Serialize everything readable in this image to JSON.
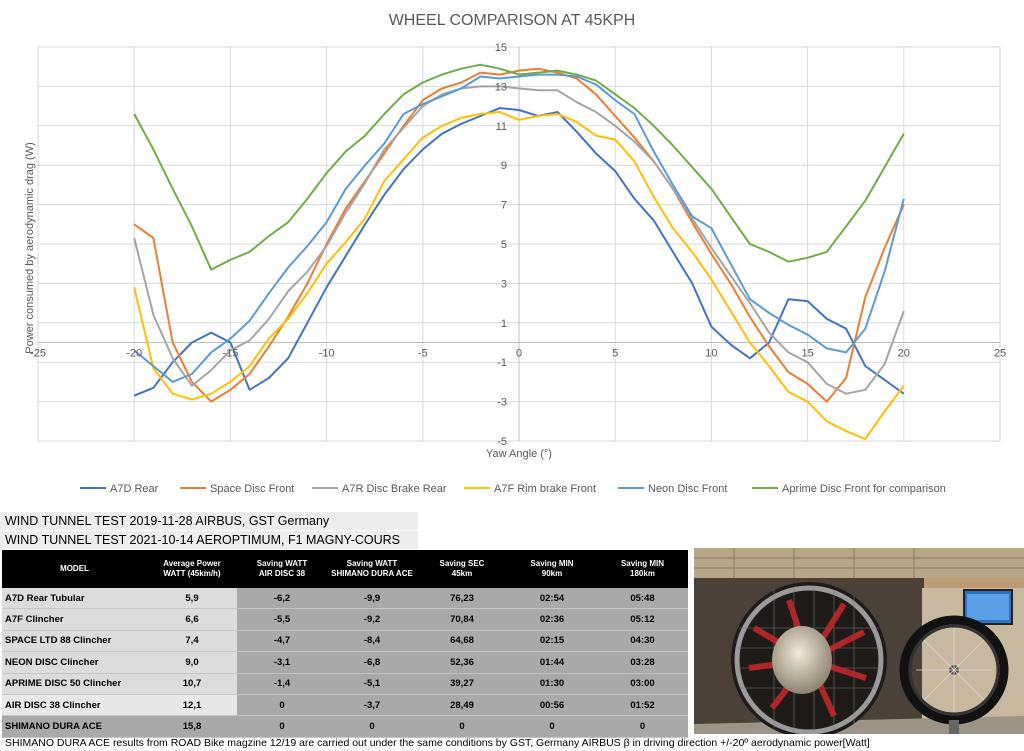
{
  "chart_data": {
    "type": "line",
    "title": "WHEEL COMPARISON AT 45KPH",
    "xlabel": "Yaw Angle (°)",
    "ylabel": "Power consumed by aerodynamic drag (W)",
    "xlim": [
      -25,
      25
    ],
    "ylim": [
      -5,
      15
    ],
    "xticks": [
      "-25",
      "-20",
      "-15",
      "-10",
      "-5",
      "0",
      "5",
      "10",
      "15",
      "20",
      "25"
    ],
    "yticks": [
      "15",
      "13",
      "11",
      "9",
      "7",
      "5",
      "3",
      "1",
      "-1",
      "-3",
      "-5"
    ],
    "grid": true,
    "legend": "bottom",
    "series": [
      {
        "name": "A7D Rear",
        "color": "#4472c4",
        "x": [
          -20,
          -19,
          -18,
          -17,
          -16,
          -15,
          -14,
          -13,
          -12,
          -11,
          -10,
          -9,
          -8,
          -7,
          -6,
          -5,
          -4,
          -3,
          -2,
          -1,
          0,
          1,
          2,
          3,
          4,
          5,
          6,
          7,
          8,
          9,
          10,
          11,
          12,
          13,
          14,
          15,
          16,
          17,
          18,
          19,
          20
        ],
        "y": [
          -2.7,
          -2.3,
          -1.0,
          0.0,
          0.5,
          0.0,
          -2.4,
          -1.8,
          -0.8,
          1.0,
          2.8,
          4.4,
          6.0,
          7.5,
          8.8,
          9.8,
          10.6,
          11.1,
          11.5,
          11.9,
          11.8,
          11.5,
          11.7,
          10.7,
          9.6,
          8.7,
          7.3,
          6.2,
          4.6,
          3.0,
          0.8,
          -0.1,
          -0.8,
          0.0,
          2.2,
          2.1,
          1.2,
          0.7,
          -1.2,
          -1.9,
          -2.6
        ]
      },
      {
        "name": "Space Disc Front",
        "color": "#ed7d31",
        "x": [
          -20,
          -19,
          -18,
          -17,
          -16,
          -15,
          -14,
          -13,
          -12,
          -11,
          -10,
          -9,
          -8,
          -7,
          -6,
          -5,
          -4,
          -3,
          -2,
          -1,
          0,
          1,
          2,
          3,
          4,
          5,
          6,
          7,
          8,
          9,
          10,
          11,
          12,
          13,
          14,
          15,
          16,
          17,
          18,
          19,
          20
        ],
        "y": [
          6.0,
          5.3,
          0.0,
          -2.0,
          -3.0,
          -2.4,
          -1.6,
          -0.2,
          1.3,
          3.0,
          5.0,
          6.8,
          8.2,
          9.6,
          11.0,
          12.3,
          12.9,
          13.2,
          13.7,
          13.6,
          13.8,
          13.9,
          13.7,
          13.4,
          12.6,
          11.5,
          10.4,
          9.2,
          7.8,
          6.1,
          4.5,
          3.0,
          1.3,
          -0.2,
          -1.5,
          -2.1,
          -3.0,
          -1.8,
          2.3,
          4.8,
          7.0
        ]
      },
      {
        "name": "A7R Disc Brake Rear",
        "color": "#a5a5a5",
        "x": [
          -20,
          -19,
          -18,
          -17,
          -16,
          -15,
          -14,
          -13,
          -12,
          -11,
          -10,
          -9,
          -8,
          -7,
          -6,
          -5,
          -4,
          -3,
          -2,
          -1,
          0,
          1,
          2,
          3,
          4,
          5,
          6,
          7,
          8,
          9,
          10,
          11,
          12,
          13,
          14,
          15,
          16,
          17,
          18,
          19,
          20
        ],
        "y": [
          5.3,
          1.4,
          -0.8,
          -2.2,
          -1.4,
          -0.4,
          0.1,
          1.2,
          2.6,
          3.6,
          4.9,
          6.6,
          8.1,
          9.8,
          10.9,
          12.0,
          12.6,
          12.9,
          13.0,
          13.0,
          12.9,
          12.8,
          12.8,
          12.2,
          11.7,
          11.0,
          10.2,
          9.2,
          7.8,
          6.3,
          4.8,
          3.4,
          2.0,
          0.5,
          -0.5,
          -1.0,
          -2.1,
          -2.6,
          -2.4,
          -1.1,
          1.6
        ]
      },
      {
        "name": "A7F Rim brake Front",
        "color": "#ffc000",
        "x": [
          -20,
          -19,
          -18,
          -17,
          -16,
          -15,
          -14,
          -13,
          -12,
          -11,
          -10,
          -9,
          -8,
          -7,
          -6,
          -5,
          -4,
          -3,
          -2,
          -1,
          0,
          1,
          2,
          3,
          4,
          5,
          6,
          7,
          8,
          9,
          10,
          11,
          12,
          13,
          14,
          15,
          16,
          17,
          18,
          19,
          20
        ],
        "y": [
          2.8,
          -1.3,
          -2.6,
          -2.9,
          -2.6,
          -2.0,
          -1.2,
          0.2,
          1.2,
          2.5,
          4.0,
          5.1,
          6.3,
          8.2,
          9.3,
          10.4,
          11.0,
          11.4,
          11.6,
          11.7,
          11.3,
          11.5,
          11.6,
          11.2,
          10.5,
          10.3,
          9.2,
          7.4,
          5.8,
          4.6,
          3.2,
          1.6,
          0.0,
          -1.2,
          -2.5,
          -3.0,
          -4.0,
          -4.5,
          -4.9,
          -3.5,
          -2.2
        ]
      },
      {
        "name": "Neon Disc Front",
        "color": "#5b9bd5",
        "x": [
          -20,
          -19,
          -18,
          -17,
          -16,
          -15,
          -14,
          -13,
          -12,
          -11,
          -10,
          -9,
          -8,
          -7,
          -6,
          -5,
          -4,
          -3,
          -2,
          -1,
          0,
          1,
          2,
          3,
          4,
          5,
          6,
          7,
          8,
          9,
          10,
          11,
          12,
          13,
          14,
          15,
          16,
          17,
          18,
          19,
          20
        ],
        "y": [
          -0.4,
          -1.2,
          -2.0,
          -1.6,
          -0.5,
          0.2,
          1.1,
          2.5,
          3.8,
          4.9,
          6.1,
          7.8,
          9.0,
          10.1,
          11.6,
          12.1,
          12.5,
          12.9,
          13.5,
          13.4,
          13.5,
          13.6,
          13.6,
          13.5,
          13.1,
          12.3,
          11.6,
          9.7,
          8.0,
          6.4,
          5.8,
          4.0,
          2.2,
          1.5,
          0.9,
          0.4,
          -0.3,
          -0.5,
          0.7,
          3.6,
          7.3
        ]
      },
      {
        "name": "Aprime Disc Front for comparison",
        "color": "#70ad47",
        "x": [
          -20,
          -19,
          -18,
          -17,
          -16,
          -15,
          -14,
          -13,
          -12,
          -11,
          -10,
          -9,
          -8,
          -7,
          -6,
          -5,
          -4,
          -3,
          -2,
          -1,
          0,
          1,
          2,
          3,
          4,
          5,
          6,
          7,
          8,
          9,
          10,
          11,
          12,
          13,
          14,
          15,
          16,
          17,
          18,
          19,
          20
        ],
        "y": [
          11.6,
          9.8,
          7.8,
          5.9,
          3.7,
          4.2,
          4.6,
          5.4,
          6.1,
          7.3,
          8.6,
          9.7,
          10.5,
          11.6,
          12.6,
          13.2,
          13.6,
          13.9,
          14.1,
          13.9,
          13.6,
          13.7,
          13.8,
          13.6,
          13.3,
          12.6,
          11.9,
          11.0,
          10.0,
          8.9,
          7.8,
          6.4,
          5.0,
          4.6,
          4.1,
          4.3,
          4.6,
          5.9,
          7.2,
          8.9,
          10.6
        ]
      }
    ]
  },
  "bands": [
    "WIND TUNNEL TEST 2019-11-28 AIRBUS, GST Germany",
    "WIND TUNNEL TEST 2021-10-14 AEROPTIMUM, F1 MAGNY-COURS"
  ],
  "table": {
    "headers": [
      [
        "MODEL",
        ""
      ],
      [
        "Average Power",
        "WATT (45km/h)"
      ],
      [
        "Saving WATT",
        "AIR DISC 38"
      ],
      [
        "Saving WATT",
        "SHIMANO DURA ACE"
      ],
      [
        "Saving SEC",
        "45km"
      ],
      [
        "Saving MIN",
        "90km"
      ],
      [
        "Saving MIN",
        "180km"
      ]
    ],
    "rows": [
      [
        "A7D Rear Tubular",
        "5,9",
        "-6,2",
        "-9,9",
        "76,23",
        "02:54",
        "05:48"
      ],
      [
        "A7F Clincher",
        "6,6",
        "-5,5",
        "-9,2",
        "70,84",
        "02:36",
        "05:12"
      ],
      [
        "SPACE LTD 88 Clincher",
        "7,4",
        "-4,7",
        "-8,4",
        "64,68",
        "02:15",
        "04:30"
      ],
      [
        "NEON DISC Clincher",
        "9,0",
        "-3,1",
        "-6,8",
        "52,36",
        "01:44",
        "03:28"
      ],
      [
        "APRIME DISC 50 Clincher",
        "10,7",
        "-1,4",
        "-5,1",
        "39,27",
        "01:30",
        "03:00"
      ],
      [
        "AIR DISC 38 Clincher",
        "12,1",
        "0",
        "-3,7",
        "28,49",
        "00:56",
        "01:52"
      ],
      [
        "SHIMANO DURA ACE",
        "15,8",
        "0",
        "0",
        "0",
        "0",
        "0"
      ]
    ]
  },
  "photo": {
    "description_icon": "wind-tunnel-photo"
  },
  "footnote": "SHIMANO DURA ACE results from ROAD Bike magzine 12/19 are carried out under the same conditions by GST, Germany AIRBUS β in driving direction +/-20º aerodynamic power[Watt]"
}
